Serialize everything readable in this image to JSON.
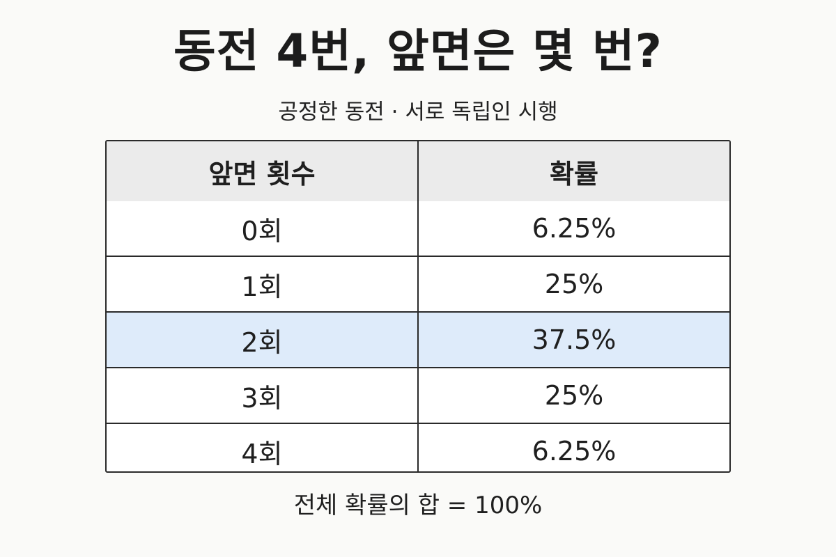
{
  "title": "동전 4번, 앞면은 몇 번?",
  "subtitle": "공정한 동전 · 서로 독립인 시행",
  "table": {
    "headers": [
      "앞면 횟수",
      "확률"
    ],
    "rows": [
      {
        "count": "0회",
        "probability": "6.25%"
      },
      {
        "count": "1회",
        "probability": "25%"
      },
      {
        "count": "2회",
        "probability": "37.5%"
      },
      {
        "count": "3회",
        "probability": "25%"
      },
      {
        "count": "4회",
        "probability": "6.25%"
      }
    ],
    "highlighted_row_index": 2
  },
  "footer": "전체 확률의 합 = 100%",
  "colors": {
    "background": "#fafaf8",
    "header_background": "#ebebeb",
    "highlight_background": "#deebfa",
    "border": "#2a2a2a"
  }
}
